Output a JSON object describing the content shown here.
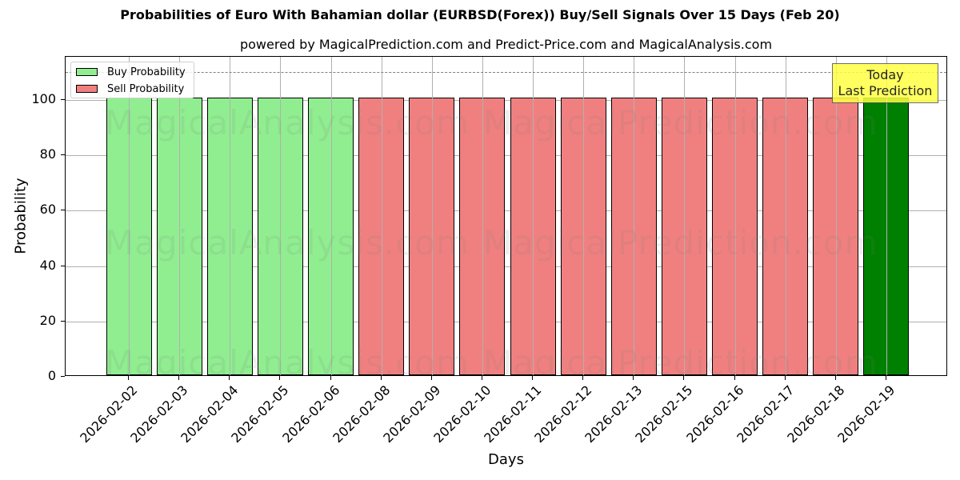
{
  "title": "Probabilities of Euro With Bahamian dollar (EURBSD(Forex)) Buy/Sell Signals Over 15 Days (Feb 20)",
  "subtitle": "powered by MagicalPrediction.com and Predict-Price.com and MagicalAnalysis.com",
  "legend": {
    "buy_label": "Buy Probability",
    "sell_label": "Sell Probability"
  },
  "annotation": {
    "line1": "Today",
    "line2": "Last Prediction"
  },
  "watermarks": [
    "MagicalAnalysis.com",
    "MagicalPrediction.com"
  ],
  "colors": {
    "buy": "#90ee90",
    "sell": "#f08080",
    "today": "#008000",
    "annotation_bg": "#ffff44"
  },
  "chart_data": {
    "type": "bar",
    "title": "Probabilities of Euro With Bahamian dollar (EURBSD(Forex)) Buy/Sell Signals Over 15 Days (Feb 20)",
    "subtitle": "powered by MagicalPrediction.com and Predict-Price.com and MagicalAnalysis.com",
    "xlabel": "Days",
    "ylabel": "Probability",
    "ylim": [
      0,
      115
    ],
    "yticks": [
      0,
      20,
      40,
      60,
      80,
      100
    ],
    "grid": true,
    "legend_position": "upper left",
    "reference_line": {
      "y": 110,
      "style": "dashed",
      "color": "#808080"
    },
    "categories": [
      "2026-02-02",
      "2026-02-03",
      "2026-02-04",
      "2026-02-05",
      "2026-02-06",
      "2026-02-08",
      "2026-02-09",
      "2026-02-10",
      "2026-02-11",
      "2026-02-12",
      "2026-02-13",
      "2026-02-15",
      "2026-02-16",
      "2026-02-17",
      "2026-02-18",
      "2026-02-19"
    ],
    "series": [
      {
        "name": "Buy Probability",
        "color": "#90ee90",
        "values": [
          100,
          100,
          100,
          100,
          100,
          0,
          0,
          0,
          0,
          0,
          0,
          0,
          0,
          0,
          0,
          100
        ]
      },
      {
        "name": "Sell Probability",
        "color": "#f08080",
        "values": [
          0,
          0,
          0,
          0,
          0,
          100,
          100,
          100,
          100,
          100,
          100,
          100,
          100,
          100,
          100,
          0
        ]
      }
    ],
    "bar_signals": [
      "buy",
      "buy",
      "buy",
      "buy",
      "buy",
      "sell",
      "sell",
      "sell",
      "sell",
      "sell",
      "sell",
      "sell",
      "sell",
      "sell",
      "sell",
      "today"
    ],
    "annotations": [
      {
        "text": "Today\nLast Prediction",
        "x": "2026-02-19",
        "y": 105,
        "bg": "#ffff44"
      }
    ]
  }
}
